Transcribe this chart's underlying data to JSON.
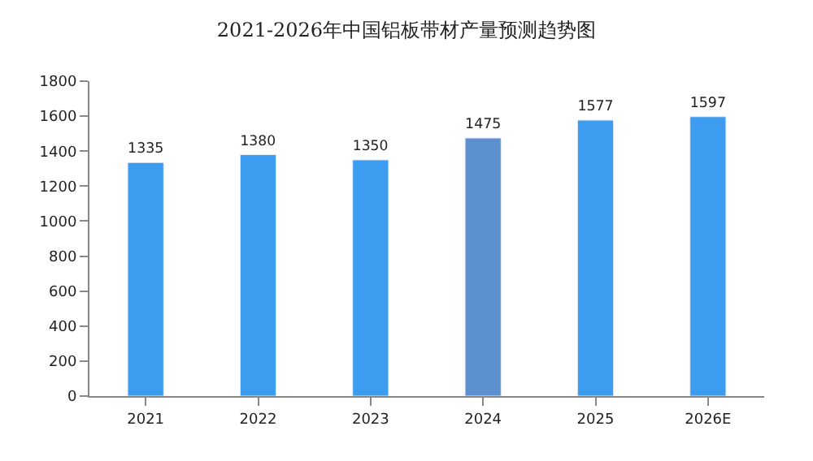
{
  "chart_data": {
    "type": "bar",
    "title": "2021-2026年中国铝板带材产量预测趋势图",
    "categories": [
      "2021",
      "2022",
      "2023",
      "2024",
      "2025",
      "2026E"
    ],
    "values": [
      1335,
      1380,
      1350,
      1475,
      1577,
      1597
    ],
    "colors": [
      "#3c9cf0",
      "#3c9cf0",
      "#3c9cf0",
      "#5b8fd0",
      "#3c9cf0",
      "#3c9cf0"
    ],
    "ylim": [
      0,
      1800
    ],
    "yticks": [
      0,
      200,
      400,
      600,
      800,
      1000,
      1200,
      1400,
      1600,
      1800
    ],
    "data_labels": true
  }
}
